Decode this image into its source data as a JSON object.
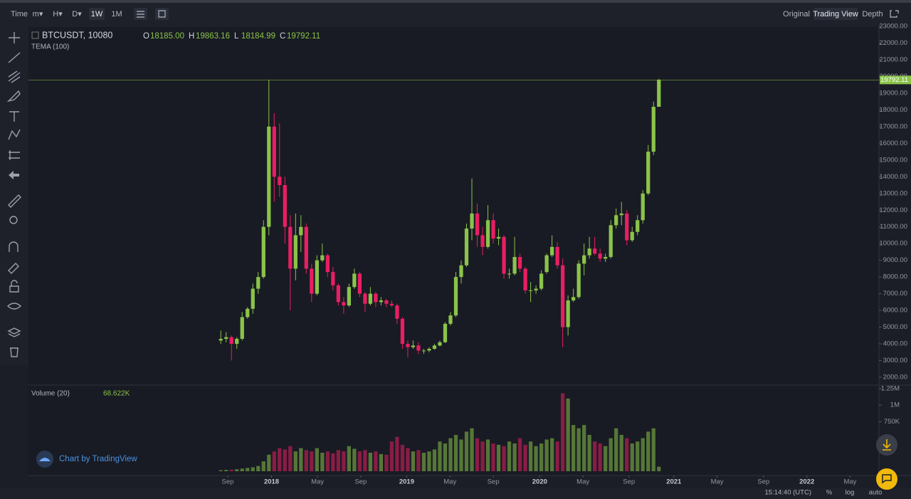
{
  "toolbar": {
    "items": [
      "Time",
      "m▾",
      "H▾",
      "D▾",
      "1W",
      "1M"
    ],
    "active": "1W",
    "views": [
      "Original",
      "Trading View",
      "Depth"
    ],
    "active_view": "Trading View"
  },
  "legend": {
    "symbol": "BTCUSDT, 10080",
    "ohlc": [
      {
        "key": "O",
        "value": "18185.00"
      },
      {
        "key": "H",
        "value": "19863.16"
      },
      {
        "key": "L",
        "value": "18184.99"
      },
      {
        "key": "C",
        "value": "19792.11"
      }
    ],
    "indicator": "TEMA (100)"
  },
  "volume_legend": {
    "name": "Volume (20)",
    "value": "68.622K"
  },
  "watermark": "Chart by TradingView",
  "status": {
    "time": "15:14:40 (UTC)",
    "items": [
      "%",
      "log",
      "auto"
    ]
  },
  "chart_data": {
    "type": "candlestick",
    "up_color": "#8bc34a",
    "down_color": "#e91e63",
    "last_price_label": "19792.11",
    "xlim": [
      -36,
      123.2
    ],
    "xticks": [
      {
        "value": 1.3,
        "label": "Sep"
      },
      {
        "value": 9.5,
        "label": "2018"
      },
      {
        "value": 18.1,
        "label": "May"
      },
      {
        "value": 26.2,
        "label": "Sep"
      },
      {
        "value": 34.8,
        "label": "2019"
      },
      {
        "value": 42.9,
        "label": "May"
      },
      {
        "value": 51,
        "label": "Sep"
      },
      {
        "value": 59.7,
        "label": "2020"
      },
      {
        "value": 67.8,
        "label": "May"
      },
      {
        "value": 76.4,
        "label": "Sep"
      },
      {
        "value": 84.8,
        "label": "2021"
      },
      {
        "value": 92.9,
        "label": "May"
      },
      {
        "value": 101.6,
        "label": "Sep"
      },
      {
        "value": 109.7,
        "label": "2022"
      },
      {
        "value": 117.8,
        "label": "May"
      }
    ],
    "ylim": [
      2000,
      23000
    ],
    "yticks": [
      {
        "value": 2000,
        "label": "2000.00"
      },
      {
        "value": 3000,
        "label": "3000.00"
      },
      {
        "value": 4000,
        "label": "4000.00"
      },
      {
        "value": 5000,
        "label": "5000.00"
      },
      {
        "value": 6000,
        "label": "6000.00"
      },
      {
        "value": 7000,
        "label": "7000.00"
      },
      {
        "value": 8000,
        "label": "8000.00"
      },
      {
        "value": 9000,
        "label": "9000.00"
      },
      {
        "value": 10000,
        "label": "10000.00"
      },
      {
        "value": 11000,
        "label": "11000.00"
      },
      {
        "value": 12000,
        "label": "12000.00"
      },
      {
        "value": 13000,
        "label": "13000.00"
      },
      {
        "value": 14000,
        "label": "14000.00"
      },
      {
        "value": 15000,
        "label": "15000.00"
      },
      {
        "value": 16000,
        "label": "16000.00"
      },
      {
        "value": 17000,
        "label": "17000.00"
      },
      {
        "value": 18000,
        "label": "18000.00"
      },
      {
        "value": 19000,
        "label": "19000.00"
      },
      {
        "value": 20000,
        "label": "20000.00"
      },
      {
        "value": 21000,
        "label": "21000.00"
      },
      {
        "value": 22000,
        "label": "22000.00"
      },
      {
        "value": 23000,
        "label": "23000.00"
      }
    ],
    "vlim": [
      0,
      1250000
    ],
    "vticks": [
      {
        "value": 1250000,
        "label": "1.25M"
      },
      {
        "value": 1000000,
        "label": "1M"
      },
      {
        "value": 750000,
        "label": "750K"
      }
    ],
    "candles": [
      [
        4200,
        4800,
        4000,
        4300
      ],
      [
        4300,
        4700,
        4100,
        4400
      ],
      [
        4400,
        4500,
        3000,
        4000
      ],
      [
        4000,
        4400,
        3700,
        4300
      ],
      [
        4300,
        5900,
        4200,
        5600
      ],
      [
        5600,
        6200,
        5500,
        6100
      ],
      [
        6100,
        7600,
        5800,
        7300
      ],
      [
        7300,
        8300,
        7000,
        8000
      ],
      [
        8000,
        11400,
        7900,
        11000
      ],
      [
        11000,
        19800,
        10500,
        17000
      ],
      [
        17000,
        17800,
        12500,
        14000
      ],
      [
        14000,
        17200,
        12800,
        13500
      ],
      [
        13500,
        14000,
        10000,
        11000
      ],
      [
        11000,
        11700,
        6000,
        8500
      ],
      [
        8500,
        11800,
        7800,
        10500
      ],
      [
        10500,
        11700,
        9500,
        11000
      ],
      [
        11000,
        11200,
        8200,
        8500
      ],
      [
        8500,
        8800,
        6500,
        7000
      ],
      [
        7000,
        9300,
        6900,
        9000
      ],
      [
        9000,
        10000,
        8900,
        9300
      ],
      [
        9300,
        9400,
        8000,
        8300
      ],
      [
        8300,
        8600,
        7200,
        7500
      ],
      [
        7500,
        7600,
        6300,
        6500
      ],
      [
        6500,
        6800,
        5800,
        6300
      ],
      [
        6300,
        7600,
        6200,
        7400
      ],
      [
        7400,
        8500,
        7300,
        8200
      ],
      [
        8200,
        8300,
        6800,
        7000
      ],
      [
        7000,
        7100,
        5900,
        6400
      ],
      [
        6400,
        7400,
        6300,
        7000
      ],
      [
        7000,
        7100,
        6200,
        6500
      ],
      [
        6500,
        6800,
        6300,
        6600
      ],
      [
        6600,
        6700,
        6200,
        6400
      ],
      [
        6400,
        6600,
        6200,
        6300
      ],
      [
        6300,
        6400,
        5200,
        5500
      ],
      [
        5500,
        5600,
        3700,
        4000
      ],
      [
        4000,
        4200,
        3200,
        3800
      ],
      [
        3800,
        4200,
        3700,
        3900
      ],
      [
        3900,
        4100,
        3400,
        3600
      ],
      [
        3600,
        3700,
        3400,
        3600
      ],
      [
        3600,
        3800,
        3500,
        3700
      ],
      [
        3700,
        4000,
        3650,
        3900
      ],
      [
        3900,
        4200,
        3850,
        4100
      ],
      [
        4100,
        5300,
        4050,
        5200
      ],
      [
        5200,
        5900,
        5100,
        5700
      ],
      [
        5700,
        8300,
        5600,
        8000
      ],
      [
        8000,
        9000,
        7600,
        8700
      ],
      [
        8700,
        11200,
        8600,
        10900
      ],
      [
        10900,
        13900,
        10200,
        11800
      ],
      [
        11800,
        12400,
        9800,
        10500
      ],
      [
        10500,
        11000,
        9300,
        9800
      ],
      [
        9800,
        12300,
        9700,
        11400
      ],
      [
        11400,
        11800,
        10000,
        10300
      ],
      [
        10300,
        10900,
        9900,
        10400
      ],
      [
        10400,
        10500,
        7900,
        8200
      ],
      [
        8200,
        8500,
        7900,
        8200
      ],
      [
        8200,
        10400,
        8100,
        9200
      ],
      [
        9200,
        9400,
        8300,
        8500
      ],
      [
        8500,
        8600,
        7000,
        7200
      ],
      [
        7200,
        7700,
        6500,
        7200
      ],
      [
        7200,
        7500,
        7000,
        7300
      ],
      [
        7300,
        8400,
        7200,
        8200
      ],
      [
        8300,
        9400,
        8200,
        9300
      ],
      [
        9300,
        10500,
        9200,
        9800
      ],
      [
        9800,
        10100,
        8500,
        8700
      ],
      [
        8700,
        9100,
        3800,
        5000
      ],
      [
        5000,
        6900,
        4500,
        6600
      ],
      [
        6600,
        7300,
        6500,
        6800
      ],
      [
        6800,
        9000,
        6700,
        8800
      ],
      [
        8800,
        10000,
        8100,
        9300
      ],
      [
        9300,
        10400,
        9100,
        9700
      ],
      [
        9700,
        10400,
        9300,
        9400
      ],
      [
        9400,
        9700,
        8900,
        9100
      ],
      [
        9100,
        9400,
        8900,
        9200
      ],
      [
        9200,
        11400,
        9100,
        11100
      ],
      [
        11100,
        12100,
        10900,
        11700
      ],
      [
        11700,
        12500,
        11100,
        11800
      ],
      [
        11800,
        12000,
        9900,
        10200
      ],
      [
        10200,
        11000,
        10100,
        10700
      ],
      [
        10700,
        11700,
        10500,
        11400
      ],
      [
        11400,
        13200,
        11200,
        13000
      ],
      [
        13000,
        15900,
        12900,
        15500
      ],
      [
        15500,
        18500,
        15300,
        18185
      ],
      [
        18185,
        19863.16,
        18184.99,
        19792.11
      ]
    ],
    "volumes": [
      15000,
      20000,
      25000,
      30000,
      40000,
      50000,
      60000,
      80000,
      150000,
      250000,
      300000,
      350000,
      330000,
      380000,
      300000,
      350000,
      320000,
      300000,
      350000,
      280000,
      300000,
      270000,
      320000,
      300000,
      380000,
      340000,
      300000,
      320000,
      280000,
      300000,
      260000,
      250000,
      450000,
      520000,
      400000,
      350000,
      300000,
      320000,
      280000,
      300000,
      330000,
      450000,
      420000,
      500000,
      550000,
      480000,
      600000,
      650000,
      500000,
      450000,
      480000,
      420000,
      400000,
      380000,
      450000,
      420000,
      500000,
      400000,
      450000,
      380000,
      420000,
      480000,
      500000,
      450000,
      1180000,
      1100000,
      700000,
      650000,
      700000,
      550000,
      450000,
      420000,
      380000,
      500000,
      650000,
      550000,
      500000,
      420000,
      450000,
      500000,
      600000,
      650000,
      68622
    ]
  }
}
